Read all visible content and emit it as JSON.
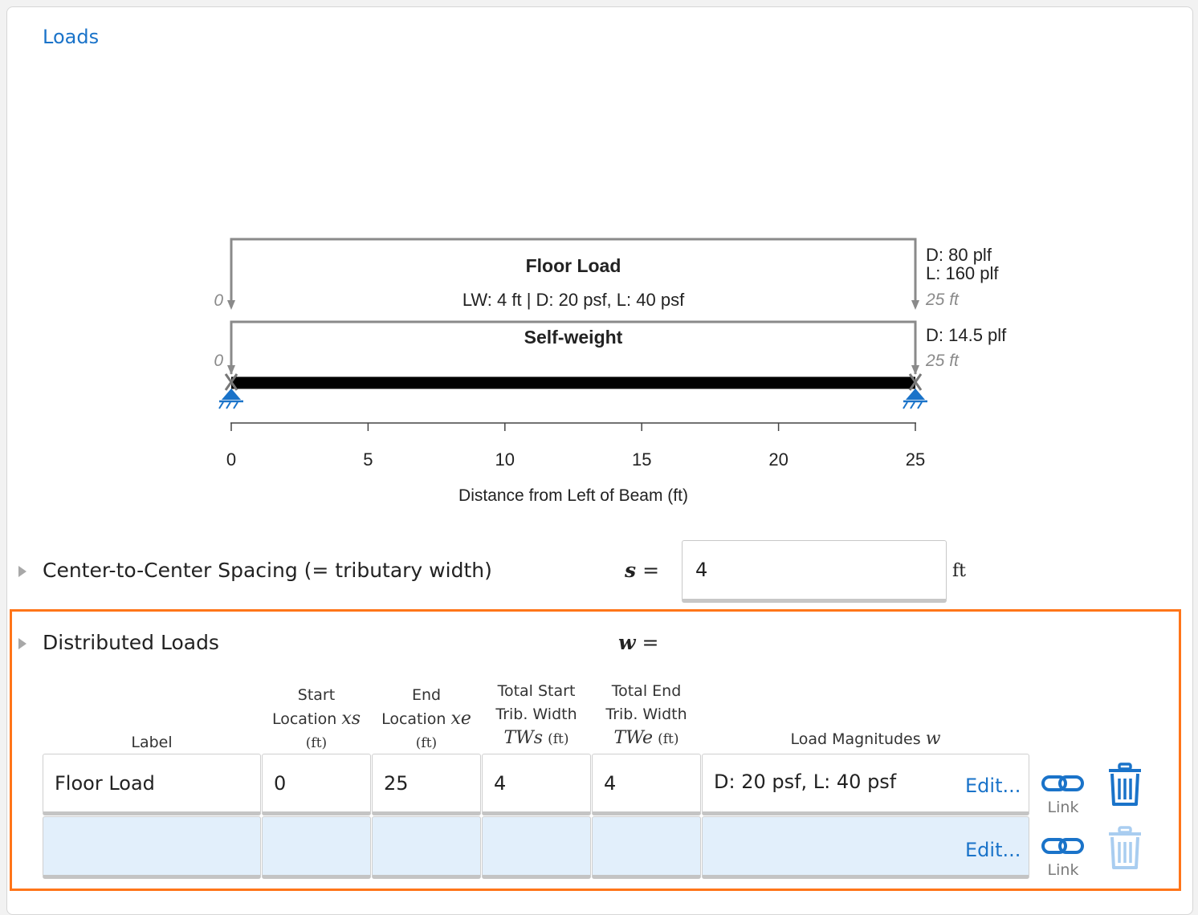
{
  "section_title": "Loads",
  "diagram": {
    "floor_load": {
      "label": "Floor Load",
      "detail": "LW: 4 ft | D: 20 psf, L: 40 psf",
      "start_label": "0",
      "end_dead": "D: 80 plf",
      "end_live": "L: 160 plf",
      "end_location": "25 ft"
    },
    "self_weight": {
      "label": "Self-weight",
      "start_label": "0",
      "end_dead": "D: 14.5 plf",
      "end_location": "25 ft"
    },
    "axis": {
      "ticks": [
        "0",
        "5",
        "10",
        "15",
        "20",
        "25"
      ],
      "xlabel": "Distance from Left of Beam (ft)"
    }
  },
  "spacing": {
    "label": "Center-to-Center Spacing (= tributary width)",
    "symbol": "s",
    "equals": "=",
    "value": "4",
    "unit": "ft"
  },
  "distributed": {
    "label": "Distributed Loads",
    "symbol": "w",
    "equals": "=",
    "columns": {
      "label": "Label",
      "start_l1": "Start",
      "start_l2": "Location",
      "start_sym": "xs",
      "start_unit": "(ft)",
      "end_l1": "End",
      "end_l2": "Location",
      "end_sym": "xe",
      "end_unit": "(ft)",
      "tws_l1": "Total Start",
      "tws_l2": "Trib. Width",
      "tws_sym": "TWs",
      "tws_unit": "(ft)",
      "twe_l1": "Total End",
      "twe_l2": "Trib. Width",
      "twe_sym": "TWe",
      "twe_unit": "(ft)",
      "mag": "Load Magnitudes",
      "mag_sym": "w"
    },
    "rows": [
      {
        "label": "Floor Load",
        "start": "0",
        "end": "25",
        "tws": "4",
        "twe": "4",
        "magnitudes": "D: 20 psf, L: 40 psf",
        "edit": "Edit...",
        "link": "Link"
      },
      {
        "label": "",
        "start": "",
        "end": "",
        "tws": "",
        "twe": "",
        "magnitudes": "",
        "edit": "Edit...",
        "link": "Link"
      }
    ]
  },
  "colors": {
    "accent": "#1a73c9",
    "highlight": "#ff7519",
    "beam": "#000000",
    "load_line": "#8a8a8a",
    "support": "#1a73c9",
    "empty_row": "#e2effb"
  }
}
